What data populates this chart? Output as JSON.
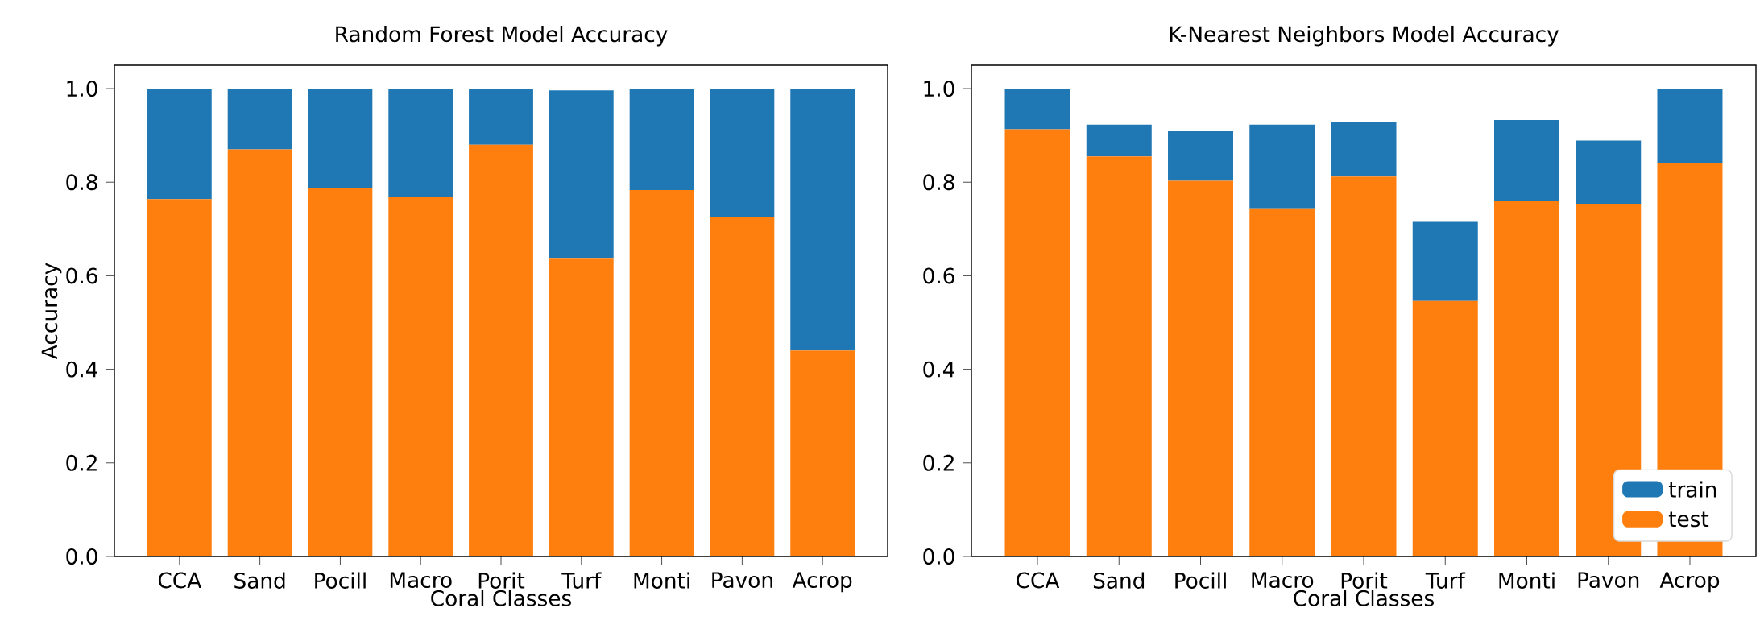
{
  "chart_data": [
    {
      "type": "bar",
      "title": "Random Forest Model Accuracy",
      "xlabel": "Coral Classes",
      "ylabel": "Accuracy",
      "stacked": true,
      "categories": [
        "CCA",
        "Sand",
        "Pocill",
        "Macro",
        "Porit",
        "Turf",
        "Monti",
        "Pavon",
        "Acrop"
      ],
      "series": [
        {
          "color": "#ff7f0e",
          "values": [
            0.764,
            0.87,
            0.787,
            0.769,
            0.88,
            0.638,
            0.783,
            0.725,
            0.44
          ]
        },
        {
          "color": "#1f77b4",
          "values": [
            0.236,
            0.13,
            0.213,
            0.231,
            0.12,
            0.358,
            0.217,
            0.275,
            0.56
          ]
        }
      ],
      "ylim": [
        0,
        1.05
      ],
      "yticks": [
        {
          "value": 0,
          "label": "0.0"
        },
        {
          "value": 0.2,
          "label": "0.2"
        },
        {
          "value": 0.4,
          "label": "0.4"
        },
        {
          "value": 0.6,
          "label": "0.6"
        },
        {
          "value": 0.8,
          "label": "0.8"
        },
        {
          "value": 1,
          "label": "1.0"
        }
      ],
      "legend": false
    },
    {
      "type": "bar",
      "title": "K-Nearest Neighbors Model Accuracy",
      "xlabel": "Coral Classes",
      "stacked": true,
      "categories": [
        "CCA",
        "Sand",
        "Pocill",
        "Macro",
        "Porit",
        "Turf",
        "Monti",
        "Pavon",
        "Acrop"
      ],
      "series": [
        {
          "name": "test",
          "color": "#ff7f0e",
          "values": [
            0.913,
            0.855,
            0.803,
            0.744,
            0.812,
            0.546,
            0.76,
            0.754,
            0.841
          ]
        },
        {
          "name": "train",
          "color": "#1f77b4",
          "values": [
            0.087,
            0.068,
            0.106,
            0.179,
            0.116,
            0.169,
            0.173,
            0.135,
            0.159
          ]
        }
      ],
      "ylim": [
        0,
        1.05
      ],
      "yticks": [
        {
          "value": 0,
          "label": "0.0"
        },
        {
          "value": 0.2,
          "label": "0.2"
        },
        {
          "value": 0.4,
          "label": "0.4"
        },
        {
          "value": 0.6,
          "label": "0.6"
        },
        {
          "value": 0.8,
          "label": "0.8"
        },
        {
          "value": 1,
          "label": "1.0"
        }
      ],
      "legend": "bottom right"
    }
  ]
}
